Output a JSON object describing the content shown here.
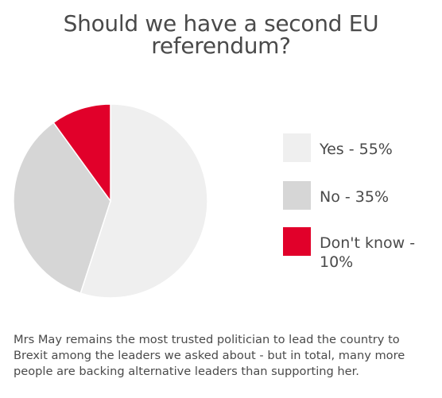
{
  "chart_data": {
    "type": "pie",
    "title": "Should we have a second EU referendum?",
    "categories": [
      "Yes",
      "No",
      "Don't know"
    ],
    "values": [
      55,
      35,
      10
    ],
    "legend_labels": [
      "Yes - 55%",
      "No - 35%",
      "Don't know - 10%"
    ],
    "colors": [
      "#efefef",
      "#d6d6d6",
      "#e1002a"
    ],
    "legend_position": "right"
  },
  "caption": "Mrs May remains the most trusted politician to lead the country to Brexit among the leaders we asked about - but in total, many more people are backing alternative leaders than supporting her."
}
